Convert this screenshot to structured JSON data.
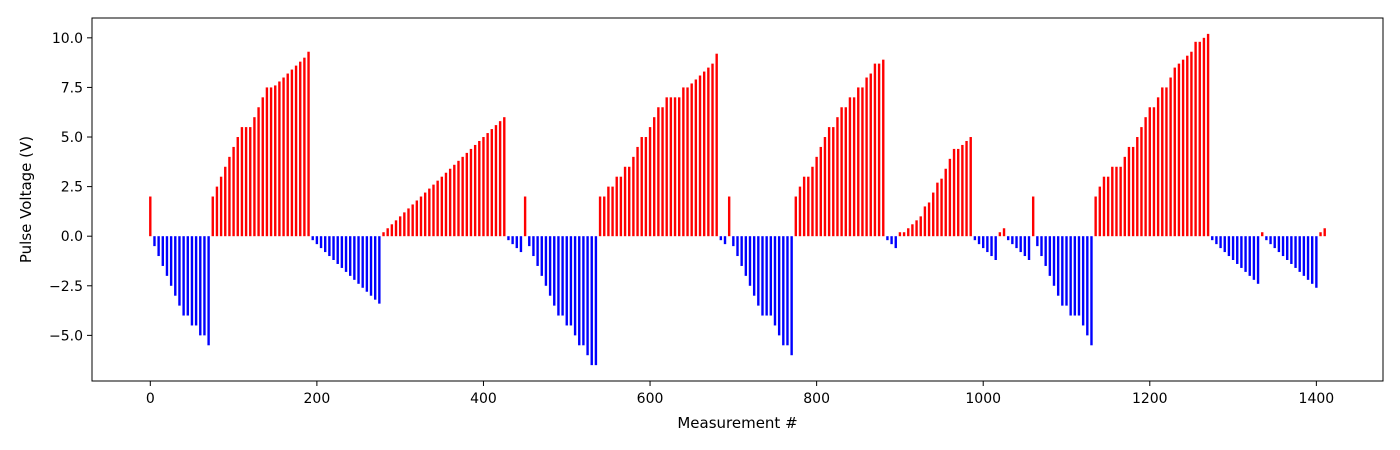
{
  "chart_data": {
    "type": "bar",
    "title": "",
    "xlabel": "Measurement #",
    "ylabel": "Pulse Voltage (V)",
    "xlim": [
      -70,
      1480
    ],
    "ylim": [
      -7.3,
      11.0
    ],
    "grid": false,
    "x_ticks": [
      0,
      200,
      400,
      600,
      800,
      1000,
      1200,
      1400
    ],
    "y_ticks": [
      -5.0,
      -2.5,
      0.0,
      2.5,
      5.0,
      7.5,
      10.0
    ],
    "x_tick_labels": [
      "0",
      "200",
      "400",
      "600",
      "800",
      "1000",
      "1200",
      "1400"
    ],
    "y_tick_labels": [
      "−5.0",
      "−2.5",
      "0.0",
      "2.5",
      "5.0",
      "7.5",
      "10.0"
    ],
    "colors": {
      "positive": "#ff0000",
      "negative": "#0000ff",
      "axes": "#000000"
    },
    "bar_width": 2.4,
    "points": [
      [
        0,
        2.0
      ],
      [
        5,
        -0.5
      ],
      [
        10,
        -1.0
      ],
      [
        15,
        -1.5
      ],
      [
        20,
        -2.0
      ],
      [
        25,
        -2.5
      ],
      [
        30,
        -3.0
      ],
      [
        35,
        -3.5
      ],
      [
        40,
        -4.0
      ],
      [
        45,
        -4.0
      ],
      [
        50,
        -4.5
      ],
      [
        55,
        -4.5
      ],
      [
        60,
        -5.0
      ],
      [
        65,
        -5.0
      ],
      [
        70,
        -5.5
      ],
      [
        75,
        2.0
      ],
      [
        80,
        2.5
      ],
      [
        85,
        3.0
      ],
      [
        90,
        3.5
      ],
      [
        95,
        4.0
      ],
      [
        100,
        4.5
      ],
      [
        105,
        5.0
      ],
      [
        110,
        5.5
      ],
      [
        115,
        5.5
      ],
      [
        120,
        5.5
      ],
      [
        125,
        6.0
      ],
      [
        130,
        6.5
      ],
      [
        135,
        7.0
      ],
      [
        140,
        7.5
      ],
      [
        145,
        7.5
      ],
      [
        150,
        7.6
      ],
      [
        155,
        7.8
      ],
      [
        160,
        8.0
      ],
      [
        165,
        8.2
      ],
      [
        170,
        8.4
      ],
      [
        175,
        8.6
      ],
      [
        180,
        8.8
      ],
      [
        185,
        9.0
      ],
      [
        190,
        9.3
      ],
      [
        195,
        -0.2
      ],
      [
        200,
        -0.4
      ],
      [
        205,
        -0.6
      ],
      [
        210,
        -0.8
      ],
      [
        215,
        -1.0
      ],
      [
        220,
        -1.2
      ],
      [
        225,
        -1.4
      ],
      [
        230,
        -1.6
      ],
      [
        235,
        -1.8
      ],
      [
        240,
        -2.0
      ],
      [
        245,
        -2.2
      ],
      [
        250,
        -2.4
      ],
      [
        255,
        -2.6
      ],
      [
        260,
        -2.8
      ],
      [
        265,
        -3.0
      ],
      [
        270,
        -3.2
      ],
      [
        275,
        -3.4
      ],
      [
        280,
        0.2
      ],
      [
        285,
        0.4
      ],
      [
        290,
        0.6
      ],
      [
        295,
        0.8
      ],
      [
        300,
        1.0
      ],
      [
        305,
        1.2
      ],
      [
        310,
        1.4
      ],
      [
        315,
        1.6
      ],
      [
        320,
        1.8
      ],
      [
        325,
        2.0
      ],
      [
        330,
        2.2
      ],
      [
        335,
        2.4
      ],
      [
        340,
        2.6
      ],
      [
        345,
        2.8
      ],
      [
        350,
        3.0
      ],
      [
        355,
        3.2
      ],
      [
        360,
        3.4
      ],
      [
        365,
        3.6
      ],
      [
        370,
        3.8
      ],
      [
        375,
        4.0
      ],
      [
        380,
        4.2
      ],
      [
        385,
        4.4
      ],
      [
        390,
        4.6
      ],
      [
        395,
        4.8
      ],
      [
        400,
        5.0
      ],
      [
        405,
        5.2
      ],
      [
        410,
        5.4
      ],
      [
        415,
        5.6
      ],
      [
        420,
        5.8
      ],
      [
        425,
        6.0
      ],
      [
        430,
        -0.2
      ],
      [
        435,
        -0.4
      ],
      [
        440,
        -0.6
      ],
      [
        445,
        -0.8
      ],
      [
        450,
        2.0
      ],
      [
        455,
        -0.5
      ],
      [
        460,
        -1.0
      ],
      [
        465,
        -1.5
      ],
      [
        470,
        -2.0
      ],
      [
        475,
        -2.5
      ],
      [
        480,
        -3.0
      ],
      [
        485,
        -3.5
      ],
      [
        490,
        -4.0
      ],
      [
        495,
        -4.0
      ],
      [
        500,
        -4.5
      ],
      [
        505,
        -4.5
      ],
      [
        510,
        -5.0
      ],
      [
        515,
        -5.5
      ],
      [
        520,
        -5.5
      ],
      [
        525,
        -6.0
      ],
      [
        530,
        -6.5
      ],
      [
        535,
        -6.5
      ],
      [
        540,
        2.0
      ],
      [
        545,
        2.0
      ],
      [
        550,
        2.5
      ],
      [
        555,
        2.5
      ],
      [
        560,
        3.0
      ],
      [
        565,
        3.0
      ],
      [
        570,
        3.5
      ],
      [
        575,
        3.5
      ],
      [
        580,
        4.0
      ],
      [
        585,
        4.5
      ],
      [
        590,
        5.0
      ],
      [
        595,
        5.0
      ],
      [
        600,
        5.5
      ],
      [
        605,
        6.0
      ],
      [
        610,
        6.5
      ],
      [
        615,
        6.5
      ],
      [
        620,
        7.0
      ],
      [
        625,
        7.0
      ],
      [
        630,
        7.0
      ],
      [
        635,
        7.0
      ],
      [
        640,
        7.5
      ],
      [
        645,
        7.5
      ],
      [
        650,
        7.7
      ],
      [
        655,
        7.9
      ],
      [
        660,
        8.1
      ],
      [
        665,
        8.3
      ],
      [
        670,
        8.5
      ],
      [
        675,
        8.7
      ],
      [
        680,
        9.2
      ],
      [
        685,
        -0.2
      ],
      [
        690,
        -0.4
      ],
      [
        695,
        2.0
      ],
      [
        700,
        -0.5
      ],
      [
        705,
        -1.0
      ],
      [
        710,
        -1.5
      ],
      [
        715,
        -2.0
      ],
      [
        720,
        -2.5
      ],
      [
        725,
        -3.0
      ],
      [
        730,
        -3.5
      ],
      [
        735,
        -4.0
      ],
      [
        740,
        -4.0
      ],
      [
        745,
        -4.0
      ],
      [
        750,
        -4.5
      ],
      [
        755,
        -5.0
      ],
      [
        760,
        -5.5
      ],
      [
        765,
        -5.5
      ],
      [
        770,
        -6.0
      ],
      [
        775,
        2.0
      ],
      [
        780,
        2.5
      ],
      [
        785,
        3.0
      ],
      [
        790,
        3.0
      ],
      [
        795,
        3.5
      ],
      [
        800,
        4.0
      ],
      [
        805,
        4.5
      ],
      [
        810,
        5.0
      ],
      [
        815,
        5.5
      ],
      [
        820,
        5.5
      ],
      [
        825,
        6.0
      ],
      [
        830,
        6.5
      ],
      [
        835,
        6.5
      ],
      [
        840,
        7.0
      ],
      [
        845,
        7.0
      ],
      [
        850,
        7.5
      ],
      [
        855,
        7.5
      ],
      [
        860,
        8.0
      ],
      [
        865,
        8.2
      ],
      [
        870,
        8.7
      ],
      [
        875,
        8.7
      ],
      [
        880,
        8.9
      ],
      [
        885,
        -0.2
      ],
      [
        890,
        -0.4
      ],
      [
        895,
        -0.6
      ],
      [
        900,
        0.2
      ],
      [
        905,
        0.2
      ],
      [
        910,
        0.4
      ],
      [
        915,
        0.6
      ],
      [
        920,
        0.8
      ],
      [
        925,
        1.0
      ],
      [
        930,
        1.5
      ],
      [
        935,
        1.7
      ],
      [
        940,
        2.2
      ],
      [
        945,
        2.7
      ],
      [
        950,
        2.9
      ],
      [
        955,
        3.4
      ],
      [
        960,
        3.9
      ],
      [
        965,
        4.4
      ],
      [
        970,
        4.4
      ],
      [
        975,
        4.6
      ],
      [
        980,
        4.8
      ],
      [
        985,
        5.0
      ],
      [
        990,
        -0.2
      ],
      [
        995,
        -0.4
      ],
      [
        1000,
        -0.6
      ],
      [
        1005,
        -0.8
      ],
      [
        1010,
        -1.0
      ],
      [
        1015,
        -1.2
      ],
      [
        1020,
        0.2
      ],
      [
        1025,
        0.4
      ],
      [
        1030,
        -0.2
      ],
      [
        1035,
        -0.4
      ],
      [
        1040,
        -0.6
      ],
      [
        1045,
        -0.8
      ],
      [
        1050,
        -1.0
      ],
      [
        1055,
        -1.2
      ],
      [
        1060,
        2.0
      ],
      [
        1065,
        -0.5
      ],
      [
        1070,
        -1.0
      ],
      [
        1075,
        -1.5
      ],
      [
        1080,
        -2.0
      ],
      [
        1085,
        -2.5
      ],
      [
        1090,
        -3.0
      ],
      [
        1095,
        -3.5
      ],
      [
        1100,
        -3.5
      ],
      [
        1105,
        -4.0
      ],
      [
        1110,
        -4.0
      ],
      [
        1115,
        -4.0
      ],
      [
        1120,
        -4.5
      ],
      [
        1125,
        -5.0
      ],
      [
        1130,
        -5.5
      ],
      [
        1135,
        2.0
      ],
      [
        1140,
        2.5
      ],
      [
        1145,
        3.0
      ],
      [
        1150,
        3.0
      ],
      [
        1155,
        3.5
      ],
      [
        1160,
        3.5
      ],
      [
        1165,
        3.5
      ],
      [
        1170,
        4.0
      ],
      [
        1175,
        4.5
      ],
      [
        1180,
        4.5
      ],
      [
        1185,
        5.0
      ],
      [
        1190,
        5.5
      ],
      [
        1195,
        6.0
      ],
      [
        1200,
        6.5
      ],
      [
        1205,
        6.5
      ],
      [
        1210,
        7.0
      ],
      [
        1215,
        7.5
      ],
      [
        1220,
        7.5
      ],
      [
        1225,
        8.0
      ],
      [
        1230,
        8.5
      ],
      [
        1235,
        8.7
      ],
      [
        1240,
        8.9
      ],
      [
        1245,
        9.1
      ],
      [
        1250,
        9.3
      ],
      [
        1255,
        9.8
      ],
      [
        1260,
        9.8
      ],
      [
        1265,
        10.0
      ],
      [
        1270,
        10.2
      ],
      [
        1275,
        -0.2
      ],
      [
        1280,
        -0.4
      ],
      [
        1285,
        -0.6
      ],
      [
        1290,
        -0.8
      ],
      [
        1295,
        -1.0
      ],
      [
        1300,
        -1.2
      ],
      [
        1305,
        -1.4
      ],
      [
        1310,
        -1.6
      ],
      [
        1315,
        -1.8
      ],
      [
        1320,
        -2.0
      ],
      [
        1325,
        -2.2
      ],
      [
        1330,
        -2.4
      ],
      [
        1335,
        0.2
      ],
      [
        1340,
        -0.2
      ],
      [
        1345,
        -0.4
      ],
      [
        1350,
        -0.6
      ],
      [
        1355,
        -0.8
      ],
      [
        1360,
        -1.0
      ],
      [
        1365,
        -1.2
      ],
      [
        1370,
        -1.4
      ],
      [
        1375,
        -1.6
      ],
      [
        1380,
        -1.8
      ],
      [
        1385,
        -2.0
      ],
      [
        1390,
        -2.2
      ],
      [
        1395,
        -2.4
      ],
      [
        1400,
        -2.6
      ],
      [
        1405,
        0.2
      ],
      [
        1410,
        0.4
      ]
    ]
  }
}
